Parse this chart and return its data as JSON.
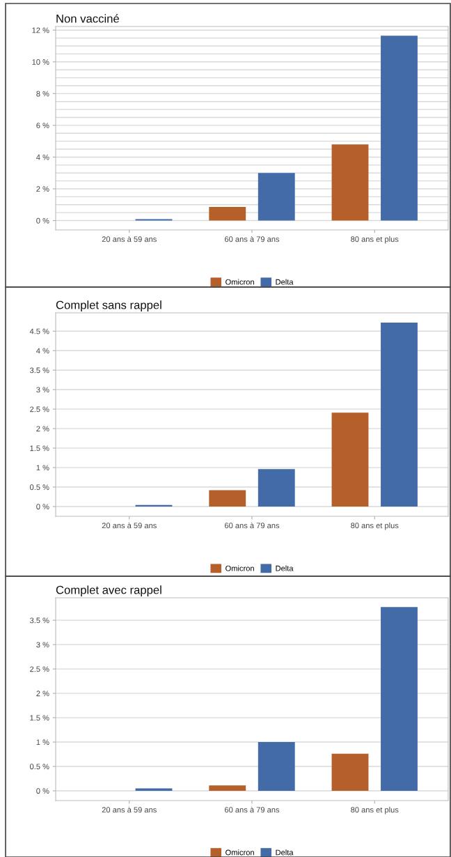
{
  "chart_data": [
    {
      "type": "bar",
      "title": "Non vacciné",
      "categories": [
        "20 ans à 59 ans",
        "60 ans à 79 ans",
        "80 ans et plus"
      ],
      "series": [
        {
          "name": "Omicron",
          "color": "#b5602a",
          "values": [
            0,
            0.86,
            4.8
          ]
        },
        {
          "name": "Delta",
          "color": "#426ba8",
          "values": [
            0.09,
            3.0,
            11.65
          ]
        }
      ],
      "ylim": [
        -0.59,
        12.23
      ],
      "yticks": [
        {
          "value": 0,
          "label": "0 %"
        },
        {
          "value": 0.5,
          "label": null
        },
        {
          "value": 1,
          "label": null
        },
        {
          "value": 1.5,
          "label": null
        },
        {
          "value": 2,
          "label": "2 %"
        },
        {
          "value": 2.5,
          "label": null
        },
        {
          "value": 3,
          "label": null
        },
        {
          "value": 3.5,
          "label": null
        },
        {
          "value": 4,
          "label": "4 %"
        },
        {
          "value": 4.5,
          "label": null
        },
        {
          "value": 5,
          "label": null
        },
        {
          "value": 5.5,
          "label": null
        },
        {
          "value": 6,
          "label": "6 %"
        },
        {
          "value": 6.5,
          "label": null
        },
        {
          "value": 7,
          "label": null
        },
        {
          "value": 7.5,
          "label": null
        },
        {
          "value": 8,
          "label": "8 %"
        },
        {
          "value": 8.5,
          "label": null
        },
        {
          "value": 9,
          "label": null
        },
        {
          "value": 9.5,
          "label": null
        },
        {
          "value": 10,
          "label": "10 %"
        },
        {
          "value": 10.5,
          "label": null
        },
        {
          "value": 11,
          "label": null
        },
        {
          "value": 11.5,
          "label": null
        },
        {
          "value": 12,
          "label": "12 %"
        }
      ],
      "grid": "y",
      "legend": "bottom"
    },
    {
      "type": "bar",
      "title": "Complet sans rappel",
      "categories": [
        "20 ans à 59 ans",
        "60 ans à 79 ans",
        "80 ans et plus"
      ],
      "series": [
        {
          "name": "Omicron",
          "color": "#b5602a",
          "values": [
            0,
            0.42,
            2.41
          ]
        },
        {
          "name": "Delta",
          "color": "#426ba8",
          "values": [
            0.04,
            0.96,
            4.72
          ]
        }
      ],
      "ylim": [
        -0.25,
        4.97
      ],
      "yticks": [
        {
          "value": 0,
          "label": "0 %"
        },
        {
          "value": 0.5,
          "label": "0.5 %"
        },
        {
          "value": 1,
          "label": "1 %"
        },
        {
          "value": 1.5,
          "label": "1.5 %"
        },
        {
          "value": 2,
          "label": "2 %"
        },
        {
          "value": 2.5,
          "label": "2.5 %"
        },
        {
          "value": 3,
          "label": "3 %"
        },
        {
          "value": 3.5,
          "label": "3.5 %"
        },
        {
          "value": 4,
          "label": "4 %"
        },
        {
          "value": 4.5,
          "label": "4.5 %"
        }
      ],
      "grid": "y",
      "legend": "bottom"
    },
    {
      "type": "bar",
      "title": "Complet avec rappel",
      "categories": [
        "20 ans à 59 ans",
        "60 ans à 79 ans",
        "80 ans et plus"
      ],
      "series": [
        {
          "name": "Omicron",
          "color": "#b5602a",
          "values": [
            0,
            0.11,
            0.76
          ]
        },
        {
          "name": "Delta",
          "color": "#426ba8",
          "values": [
            0.05,
            1.0,
            3.77
          ]
        }
      ],
      "ylim": [
        -0.2,
        3.96
      ],
      "yticks": [
        {
          "value": 0,
          "label": "0 %"
        },
        {
          "value": 0.5,
          "label": "0.5 %"
        },
        {
          "value": 1,
          "label": "1 %"
        },
        {
          "value": 1.5,
          "label": "1.5 %"
        },
        {
          "value": 2,
          "label": "2 %"
        },
        {
          "value": 2.5,
          "label": "2.5 %"
        },
        {
          "value": 3,
          "label": "3 %"
        },
        {
          "value": 3.5,
          "label": "3.5 %"
        }
      ],
      "grid": "y",
      "legend": "bottom"
    }
  ]
}
